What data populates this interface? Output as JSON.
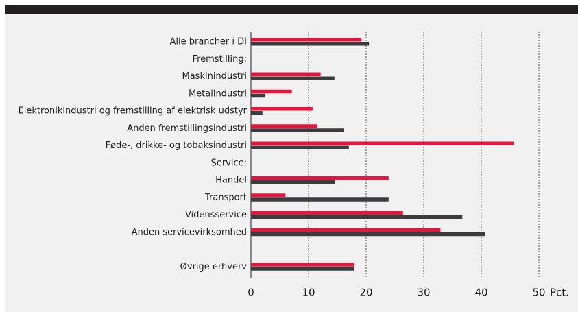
{
  "chart_data": {
    "type": "hbar",
    "categories": [
      "Alle brancher i DI",
      "Fremstilling:",
      "Maskinindustri",
      "Metalindustri",
      "Elektronikindustri og fremstilling af elektrisk udstyr",
      "Anden fremstillingsindustri",
      "Føde-, drikke- og tobaksindustri",
      "Service:",
      "Handel",
      "Transport",
      "Vidensservice",
      "Anden servicevirksomhed",
      null,
      "Øvrige erhverv"
    ],
    "series": [
      {
        "color": "#e2173f",
        "values": [
          19.2,
          null,
          12.1,
          7.1,
          10.7,
          11.5,
          45.6,
          null,
          23.9,
          6.0,
          26.4,
          32.9,
          null,
          17.9
        ]
      },
      {
        "color": "#3b3b3d",
        "values": [
          20.5,
          null,
          14.5,
          2.4,
          2.0,
          16.1,
          17.0,
          null,
          14.6,
          23.9,
          36.7,
          40.6,
          null,
          17.9
        ]
      }
    ],
    "xlim": [
      0,
      50
    ],
    "xticks": [
      0,
      10,
      20,
      30,
      40,
      50
    ],
    "xlabel": "Pct.",
    "grid": true
  }
}
